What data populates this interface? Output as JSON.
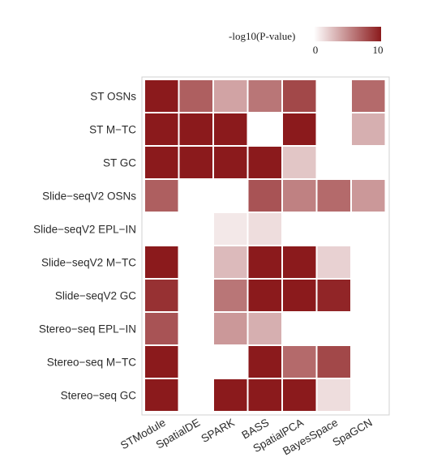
{
  "chart_data": {
    "type": "heatmap",
    "title": "",
    "xlabel": "",
    "ylabel": "",
    "rows": [
      "ST OSNs",
      "ST M−TC",
      "ST GC",
      "Slide−seqV2 OSNs",
      "Slide−seqV2 EPL−IN",
      "Slide−seqV2 M−TC",
      "Slide−seqV2 GC",
      "Stereo−seq EPL−IN",
      "Stereo−seq M−TC",
      "Stereo−seq GC"
    ],
    "columns": [
      "STModule",
      "SpatialDE",
      "SPARK",
      "BASS",
      "SpatialPCA",
      "BayesSpace",
      "SpaGCN"
    ],
    "values": [
      [
        10,
        7,
        4,
        6,
        8,
        null,
        6.5
      ],
      [
        10,
        10,
        10,
        null,
        10,
        null,
        3.5
      ],
      [
        10,
        10,
        10,
        10,
        2.5,
        null,
        null
      ],
      [
        7,
        null,
        null,
        7.5,
        5.5,
        6.5,
        4.5
      ],
      [
        null,
        null,
        1,
        1.5,
        null,
        null,
        null
      ],
      [
        10,
        null,
        3,
        10,
        10,
        2,
        null
      ],
      [
        9,
        null,
        6,
        10,
        10,
        9.5,
        null
      ],
      [
        7.5,
        null,
        4.5,
        3.5,
        null,
        null,
        null
      ],
      [
        10,
        null,
        null,
        10,
        6.5,
        8,
        null
      ],
      [
        10,
        null,
        10,
        10,
        10,
        1.5,
        null
      ]
    ],
    "legend": {
      "title": "-log10(P-value)",
      "min": 0,
      "max": 10,
      "ticks": [
        "0",
        "10"
      ],
      "color_low": "#ffffff",
      "color_high": "#8b1a1c"
    },
    "grid": false,
    "legend_position": "top-right"
  }
}
